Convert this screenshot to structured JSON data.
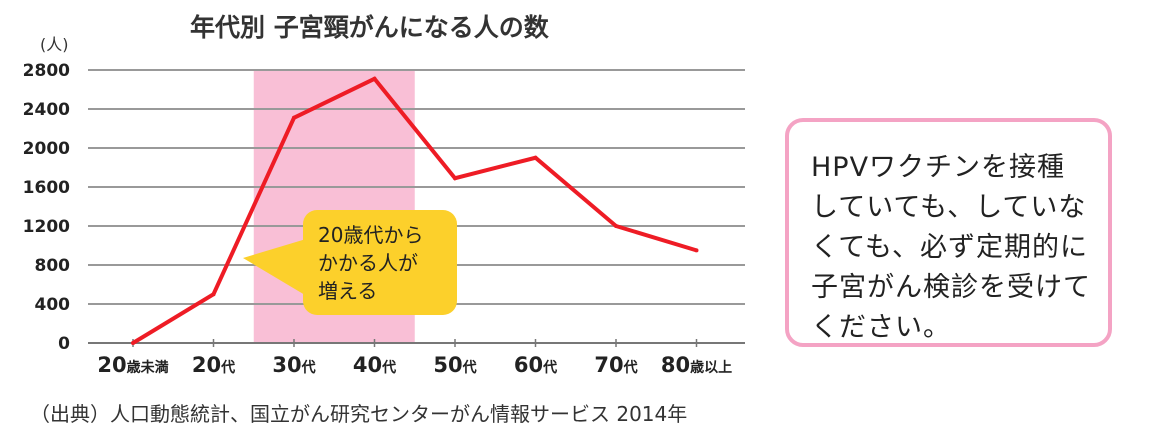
{
  "chart_data": {
    "type": "line",
    "title": "年代別 子宮頸がんになる人の数",
    "ylabel": "(人)",
    "xlabel": "",
    "ylim": [
      0,
      2800
    ],
    "yticks": [
      "0",
      "400",
      "800",
      "1200",
      "1600",
      "2000",
      "2400",
      "2800"
    ],
    "grid": true,
    "categories": [
      {
        "num": "20",
        "suffix": "歳未満"
      },
      {
        "num": "20",
        "suffix": "代"
      },
      {
        "num": "30",
        "suffix": "代"
      },
      {
        "num": "40",
        "suffix": "代"
      },
      {
        "num": "50",
        "suffix": "代"
      },
      {
        "num": "60",
        "suffix": "代"
      },
      {
        "num": "70",
        "suffix": "代"
      },
      {
        "num": "80",
        "suffix": "歳以上"
      }
    ],
    "series": [
      {
        "name": "子宮頸がんになる人の数",
        "color": "#ee1c25",
        "values": [
          0,
          500,
          2310,
          2710,
          1690,
          1900,
          1200,
          950
        ]
      }
    ],
    "highlight": {
      "from": 1.5,
      "to": 3.5,
      "color": "#f9bfd6"
    },
    "annotation": {
      "lines": [
        "20歳代から",
        "かかる人が",
        "増える"
      ],
      "color": "#fcd02b"
    }
  },
  "note": {
    "text": "HPVワクチンを接種\nしていても、していな\nくても、必ず定期的に\n子宮がん検診を受けて\nください。",
    "border_color": "#f4a3c4"
  },
  "source": "（出典）人口動態統計、国立がん研究センターがん情報サービス 2014年"
}
